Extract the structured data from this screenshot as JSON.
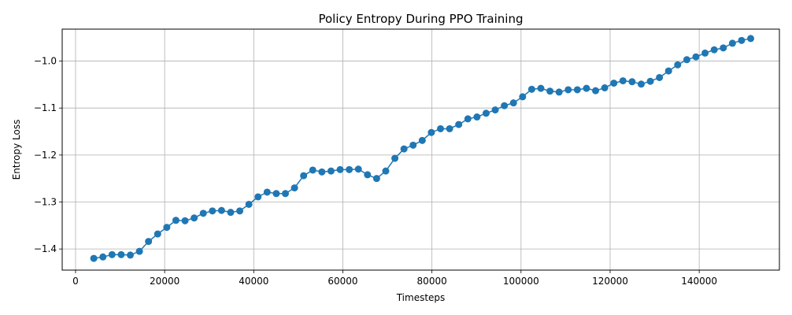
{
  "chart_data": {
    "type": "line",
    "title": "Policy Entropy During PPO Training",
    "xlabel": "Timesteps",
    "ylabel": "Entropy Loss",
    "xlim": [
      -3000,
      158000
    ],
    "ylim": [
      -1.445,
      -0.932
    ],
    "xticks": [
      0,
      20000,
      40000,
      60000,
      80000,
      100000,
      120000,
      140000
    ],
    "xtick_labels": [
      "0",
      "20000",
      "40000",
      "60000",
      "80000",
      "100000",
      "120000",
      "140000"
    ],
    "yticks": [
      -1.4,
      -1.3,
      -1.2,
      -1.1,
      -1.0
    ],
    "ytick_labels": [
      "−1.4",
      "−1.3",
      "−1.2",
      "−1.1",
      "−1.0"
    ],
    "grid": true,
    "colors": {
      "series": "#1f77b4",
      "grid": "#b0b0b0",
      "axis": "#000000"
    },
    "series": [
      {
        "marker": "circle",
        "x": [
          4096,
          6144,
          8192,
          10240,
          12288,
          14336,
          16384,
          18432,
          20480,
          22528,
          24576,
          26624,
          28672,
          30720,
          32768,
          34816,
          36864,
          38912,
          40960,
          43008,
          45056,
          47104,
          49152,
          51200,
          53248,
          55296,
          57344,
          59392,
          61440,
          63488,
          65536,
          67584,
          69632,
          71680,
          73728,
          75776,
          77824,
          79872,
          81920,
          83968,
          86016,
          88064,
          90112,
          92160,
          94208,
          96256,
          98304,
          100352,
          102400,
          104448,
          106496,
          108544,
          110592,
          112640,
          114688,
          116736,
          118784,
          120832,
          122880,
          124928,
          126976,
          129024,
          131072,
          133120,
          135168,
          137216,
          139264,
          141312,
          143360,
          145408,
          147456,
          149504,
          151552
        ],
        "y": [
          -1.42,
          -1.417,
          -1.412,
          -1.412,
          -1.413,
          -1.405,
          -1.384,
          -1.368,
          -1.354,
          -1.339,
          -1.34,
          -1.334,
          -1.324,
          -1.319,
          -1.318,
          -1.322,
          -1.319,
          -1.305,
          -1.289,
          -1.279,
          -1.282,
          -1.282,
          -1.27,
          -1.244,
          -1.232,
          -1.236,
          -1.234,
          -1.231,
          -1.231,
          -1.23,
          -1.242,
          -1.25,
          -1.234,
          -1.207,
          -1.187,
          -1.179,
          -1.169,
          -1.152,
          -1.144,
          -1.144,
          -1.135,
          -1.123,
          -1.119,
          -1.111,
          -1.104,
          -1.095,
          -1.089,
          -1.076,
          -1.06,
          -1.058,
          -1.064,
          -1.066,
          -1.061,
          -1.061,
          -1.058,
          -1.063,
          -1.057,
          -1.047,
          -1.042,
          -1.044,
          -1.049,
          -1.043,
          -1.035,
          -1.021,
          -1.008,
          -0.997,
          -0.991,
          -0.983,
          -0.976,
          -0.972,
          -0.962,
          -0.956,
          -0.952
        ]
      }
    ]
  }
}
